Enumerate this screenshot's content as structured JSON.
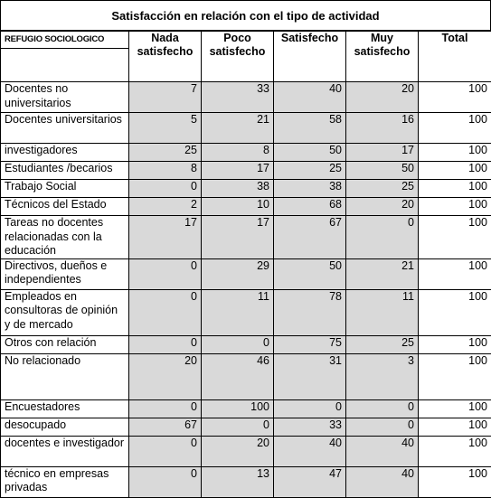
{
  "title": "Satisfacción en relación con el tipo de actividad",
  "source_label": "REFUGIO SOCIOLOGICO",
  "columns": [
    "Nada satisfecho",
    "Poco satisfecho",
    "Satisfecho",
    "Muy satisfecho",
    "Total"
  ],
  "rows": [
    {
      "label": "Docentes no universitarios",
      "values": [
        7,
        33,
        40,
        20,
        100
      ],
      "h": 34
    },
    {
      "label": "Docentes universitarios",
      "values": [
        5,
        21,
        58,
        16,
        100
      ],
      "h": 34
    },
    {
      "label": "investigadores",
      "values": [
        25,
        8,
        50,
        17,
        100
      ],
      "h": 20
    },
    {
      "label": "Estudiantes /becarios",
      "values": [
        8,
        17,
        25,
        50,
        100
      ],
      "h": 20
    },
    {
      "label": "Trabajo Social",
      "values": [
        0,
        38,
        38,
        25,
        100
      ],
      "h": 20
    },
    {
      "label": "Técnicos del Estado",
      "values": [
        2,
        10,
        68,
        20,
        100
      ],
      "h": 20
    },
    {
      "label": "Tareas no docentes relacionadas con la educación",
      "values": [
        17,
        17,
        67,
        0,
        100
      ],
      "h": 45
    },
    {
      "label": "Directivos, dueños e independientes",
      "values": [
        0,
        29,
        50,
        21,
        100
      ],
      "h": 34
    },
    {
      "label": "Empleados en consultoras de opinión y de mercado",
      "values": [
        0,
        11,
        78,
        11,
        100
      ],
      "h": 51
    },
    {
      "label": "Otros con relación",
      "values": [
        0,
        0,
        75,
        25,
        100
      ],
      "h": 20
    },
    {
      "label": "No relacionado",
      "values": [
        20,
        46,
        31,
        3,
        100
      ],
      "h": 51
    },
    {
      "label": "Encuestadores",
      "values": [
        0,
        100,
        0,
        0,
        100
      ],
      "h": 20
    },
    {
      "label": "desocupado",
      "values": [
        67,
        0,
        33,
        0,
        100
      ],
      "h": 20
    },
    {
      "label": "docentes e investigador",
      "values": [
        0,
        20,
        40,
        40,
        100
      ],
      "h": 34
    },
    {
      "label": "técnico en empresas privadas",
      "values": [
        0,
        13,
        47,
        40,
        100
      ],
      "h": 34
    }
  ]
}
